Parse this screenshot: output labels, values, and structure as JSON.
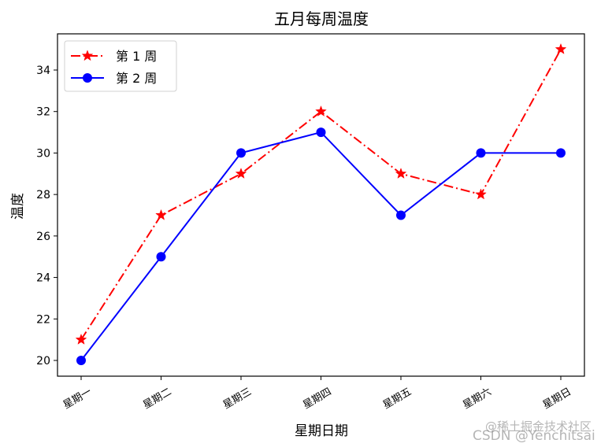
{
  "chart_data": {
    "type": "line",
    "title": "五月每周温度",
    "xlabel": "星期日期",
    "ylabel": "温度",
    "categories": [
      "星期一",
      "星期二",
      "星期三",
      "星期四",
      "星期五",
      "星期六",
      "星期日"
    ],
    "series": [
      {
        "name": "第 1 周",
        "values": [
          21,
          27,
          29,
          32,
          29,
          28,
          35
        ],
        "color": "#ff0000",
        "linestyle": "dashdot",
        "marker": "star"
      },
      {
        "name": "第 2 周",
        "values": [
          20,
          25,
          30,
          31,
          27,
          30,
          30
        ],
        "color": "#0000ff",
        "linestyle": "solid",
        "marker": "circle"
      }
    ],
    "yticks": [
      20,
      22,
      24,
      26,
      28,
      30,
      32,
      34
    ],
    "ylim": [
      19.25,
      35.75
    ],
    "grid": false,
    "legend_position": "upper left",
    "xtick_rotation": 30
  },
  "watermarks": {
    "line1": "@稀土掘金技术社区",
    "line2": "CSDN @Yenchitsai"
  }
}
